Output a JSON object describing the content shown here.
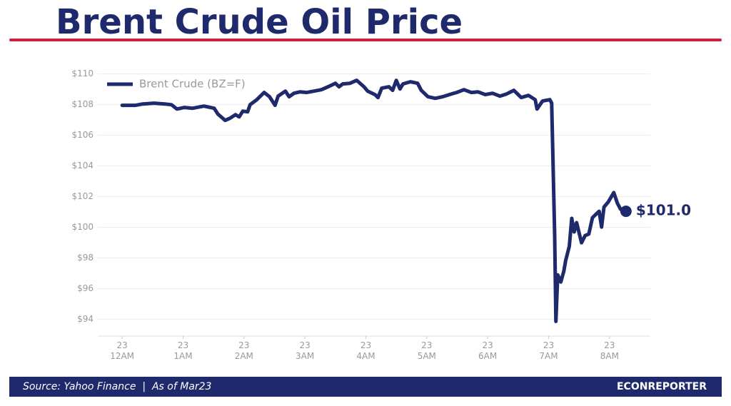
{
  "chart_data": {
    "type": "line",
    "title": "Brent Crude Oil Price",
    "source": "Source: Yahoo Finance  |  As of Mar23",
    "brand": "ECONREPORTER",
    "end_label": "$101.0",
    "legend": "upper left",
    "grid": true,
    "xlim": [
      -0.4,
      8.67
    ],
    "ylim": [
      92.9,
      110.4
    ],
    "xticks": [
      {
        "value": 0,
        "label": "23\n12AM"
      },
      {
        "value": 1,
        "label": "23\n1AM"
      },
      {
        "value": 2,
        "label": "23\n2AM"
      },
      {
        "value": 3,
        "label": "23\n3AM"
      },
      {
        "value": 4,
        "label": "23\n4AM"
      },
      {
        "value": 5,
        "label": "23\n5AM"
      },
      {
        "value": 6,
        "label": "23\n6AM"
      },
      {
        "value": 7,
        "label": "23\n7AM"
      },
      {
        "value": 8,
        "label": "23\n8AM"
      }
    ],
    "yticks": [
      {
        "value": 94,
        "label": "$94"
      },
      {
        "value": 96,
        "label": "$96"
      },
      {
        "value": 98,
        "label": "$98"
      },
      {
        "value": 100,
        "label": "$100"
      },
      {
        "value": 102,
        "label": "$102"
      },
      {
        "value": 104,
        "label": "$104"
      },
      {
        "value": 106,
        "label": "$106"
      },
      {
        "value": 108,
        "label": "$108"
      },
      {
        "value": 110,
        "label": "$110"
      }
    ],
    "x": [
      0,
      0.22,
      0.34,
      0.52,
      0.7,
      0.81,
      0.9,
      1.02,
      1.16,
      1.34,
      1.51,
      1.57,
      1.69,
      1.77,
      1.86,
      1.92,
      1.98,
      2.06,
      2.1,
      2.21,
      2.33,
      2.42,
      2.51,
      2.56,
      2.68,
      2.74,
      2.82,
      2.92,
      3.03,
      3.15,
      3.27,
      3.38,
      3.5,
      3.56,
      3.62,
      3.74,
      3.85,
      3.97,
      4.03,
      4.15,
      4.2,
      4.26,
      4.38,
      4.44,
      4.5,
      4.56,
      4.61,
      4.73,
      4.85,
      4.91,
      5.02,
      5.14,
      5.26,
      5.37,
      5.49,
      5.61,
      5.73,
      5.84,
      5.96,
      6.08,
      6.2,
      6.31,
      6.43,
      6.55,
      6.67,
      6.78,
      6.81,
      6.9,
      7.02,
      7.05,
      7.1,
      7.12,
      7.15,
      7.2,
      7.25,
      7.28,
      7.34,
      7.38,
      7.42,
      7.46,
      7.54,
      7.6,
      7.66,
      7.72,
      7.78,
      7.83,
      7.87,
      7.91,
      7.98,
      8.07,
      8.13,
      8.18,
      8.27
    ],
    "series": [
      {
        "name": "Brent Crude (BZ=F)",
        "color": "#1e2a6b",
        "values": [
          107.95,
          107.95,
          108.04,
          108.09,
          108.04,
          107.99,
          107.71,
          107.81,
          107.76,
          107.9,
          107.76,
          107.39,
          106.97,
          107.11,
          107.34,
          107.2,
          107.57,
          107.53,
          107.99,
          108.32,
          108.79,
          108.51,
          107.95,
          108.55,
          108.88,
          108.51,
          108.74,
          108.83,
          108.79,
          108.88,
          108.97,
          109.16,
          109.39,
          109.16,
          109.35,
          109.39,
          109.58,
          109.16,
          108.88,
          108.65,
          108.46,
          109.07,
          109.16,
          108.93,
          109.58,
          109.02,
          109.35,
          109.49,
          109.39,
          108.93,
          108.51,
          108.41,
          108.51,
          108.65,
          108.79,
          108.97,
          108.79,
          108.83,
          108.65,
          108.74,
          108.55,
          108.69,
          108.93,
          108.46,
          108.6,
          108.32,
          107.71,
          108.23,
          108.32,
          108.09,
          99.46,
          93.86,
          96.89,
          96.43,
          97.13,
          97.83,
          98.76,
          100.58,
          99.69,
          100.3,
          98.99,
          99.46,
          99.55,
          100.62,
          100.86,
          101.04,
          100.01,
          101.32,
          101.65,
          102.26,
          101.56,
          101.18,
          101.04
        ]
      }
    ]
  }
}
